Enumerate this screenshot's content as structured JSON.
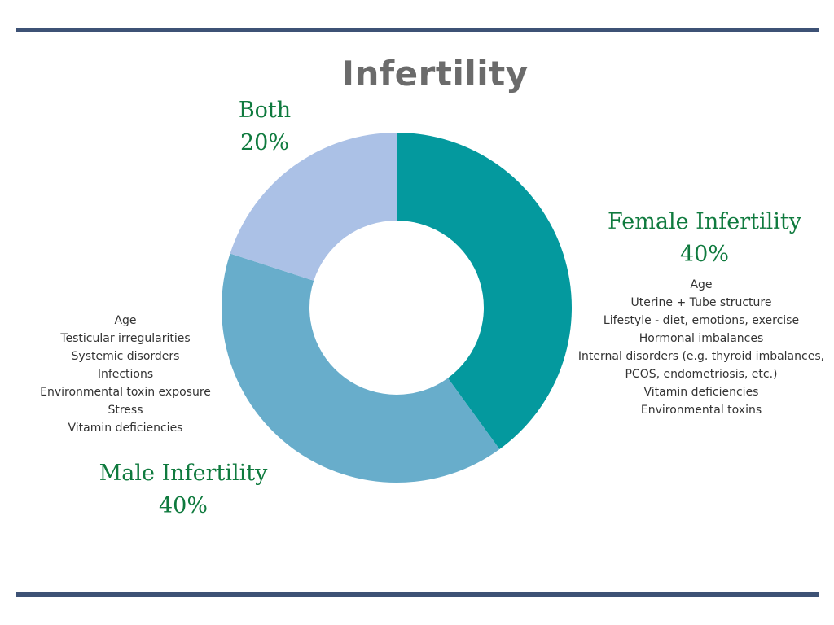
{
  "chart_data": {
    "type": "pie",
    "title": "Infertility",
    "donut": true,
    "slices": [
      {
        "label": "Female Infertility",
        "value": 40,
        "value_label": "40%",
        "color": "#04999e"
      },
      {
        "label": "Male Infertility",
        "value": 40,
        "value_label": "40%",
        "color": "#68adcb"
      },
      {
        "label": "Both",
        "value": 20,
        "value_label": "20%",
        "color": "#abc1e6"
      }
    ],
    "label_color": "#0f7a3e"
  },
  "notes": {
    "female": [
      "Age",
      "Uterine + Tube structure",
      "Lifestyle - diet, emotions, exercise",
      "Hormonal imbalances",
      "Internal disorders (e.g. thyroid imbalances,",
      "PCOS, endometriosis, etc.)",
      "Vitamin deficiencies",
      "Environmental toxins"
    ],
    "male": [
      "Age",
      "Testicular irregularities",
      "Systemic disorders",
      "Infections",
      "Environmental toxin exposure",
      "Stress",
      "Vitamin deficiencies"
    ]
  },
  "colors": {
    "rule": "#3d5275",
    "title": "#6b6b6b"
  }
}
